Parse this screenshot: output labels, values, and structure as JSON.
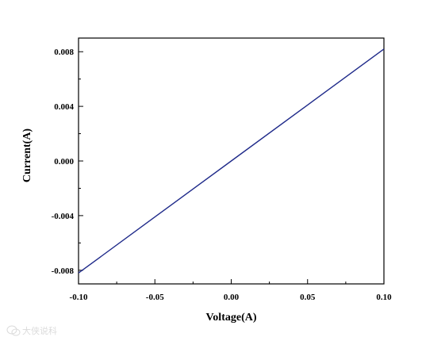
{
  "chart_data": {
    "type": "line",
    "title": "",
    "xlabel": "Voltage(A)",
    "ylabel": "Current(A)",
    "xlim": [
      -0.1,
      0.1
    ],
    "ylim": [
      -0.009,
      0.009
    ],
    "x_ticks": [
      -0.1,
      -0.05,
      0.0,
      0.05,
      0.1
    ],
    "x_tick_labels": [
      "-0.10",
      "-0.05",
      "0.00",
      "0.05",
      "0.10"
    ],
    "y_ticks": [
      -0.008,
      -0.004,
      0.0,
      0.004,
      0.008
    ],
    "y_tick_labels": [
      "-0.008",
      "-0.004",
      "0.000",
      "0.004",
      "0.008"
    ],
    "grid": false,
    "legend": "none",
    "series": [
      {
        "color": "#1f2a8a",
        "x": [
          -0.1,
          -0.05,
          0.0,
          0.05,
          0.1
        ],
        "y": [
          -0.0082,
          -0.0041,
          0.0,
          0.0041,
          0.0082
        ]
      }
    ]
  },
  "watermark": {
    "icon": "wechat-logo-icon",
    "text": "大侠说科"
  }
}
